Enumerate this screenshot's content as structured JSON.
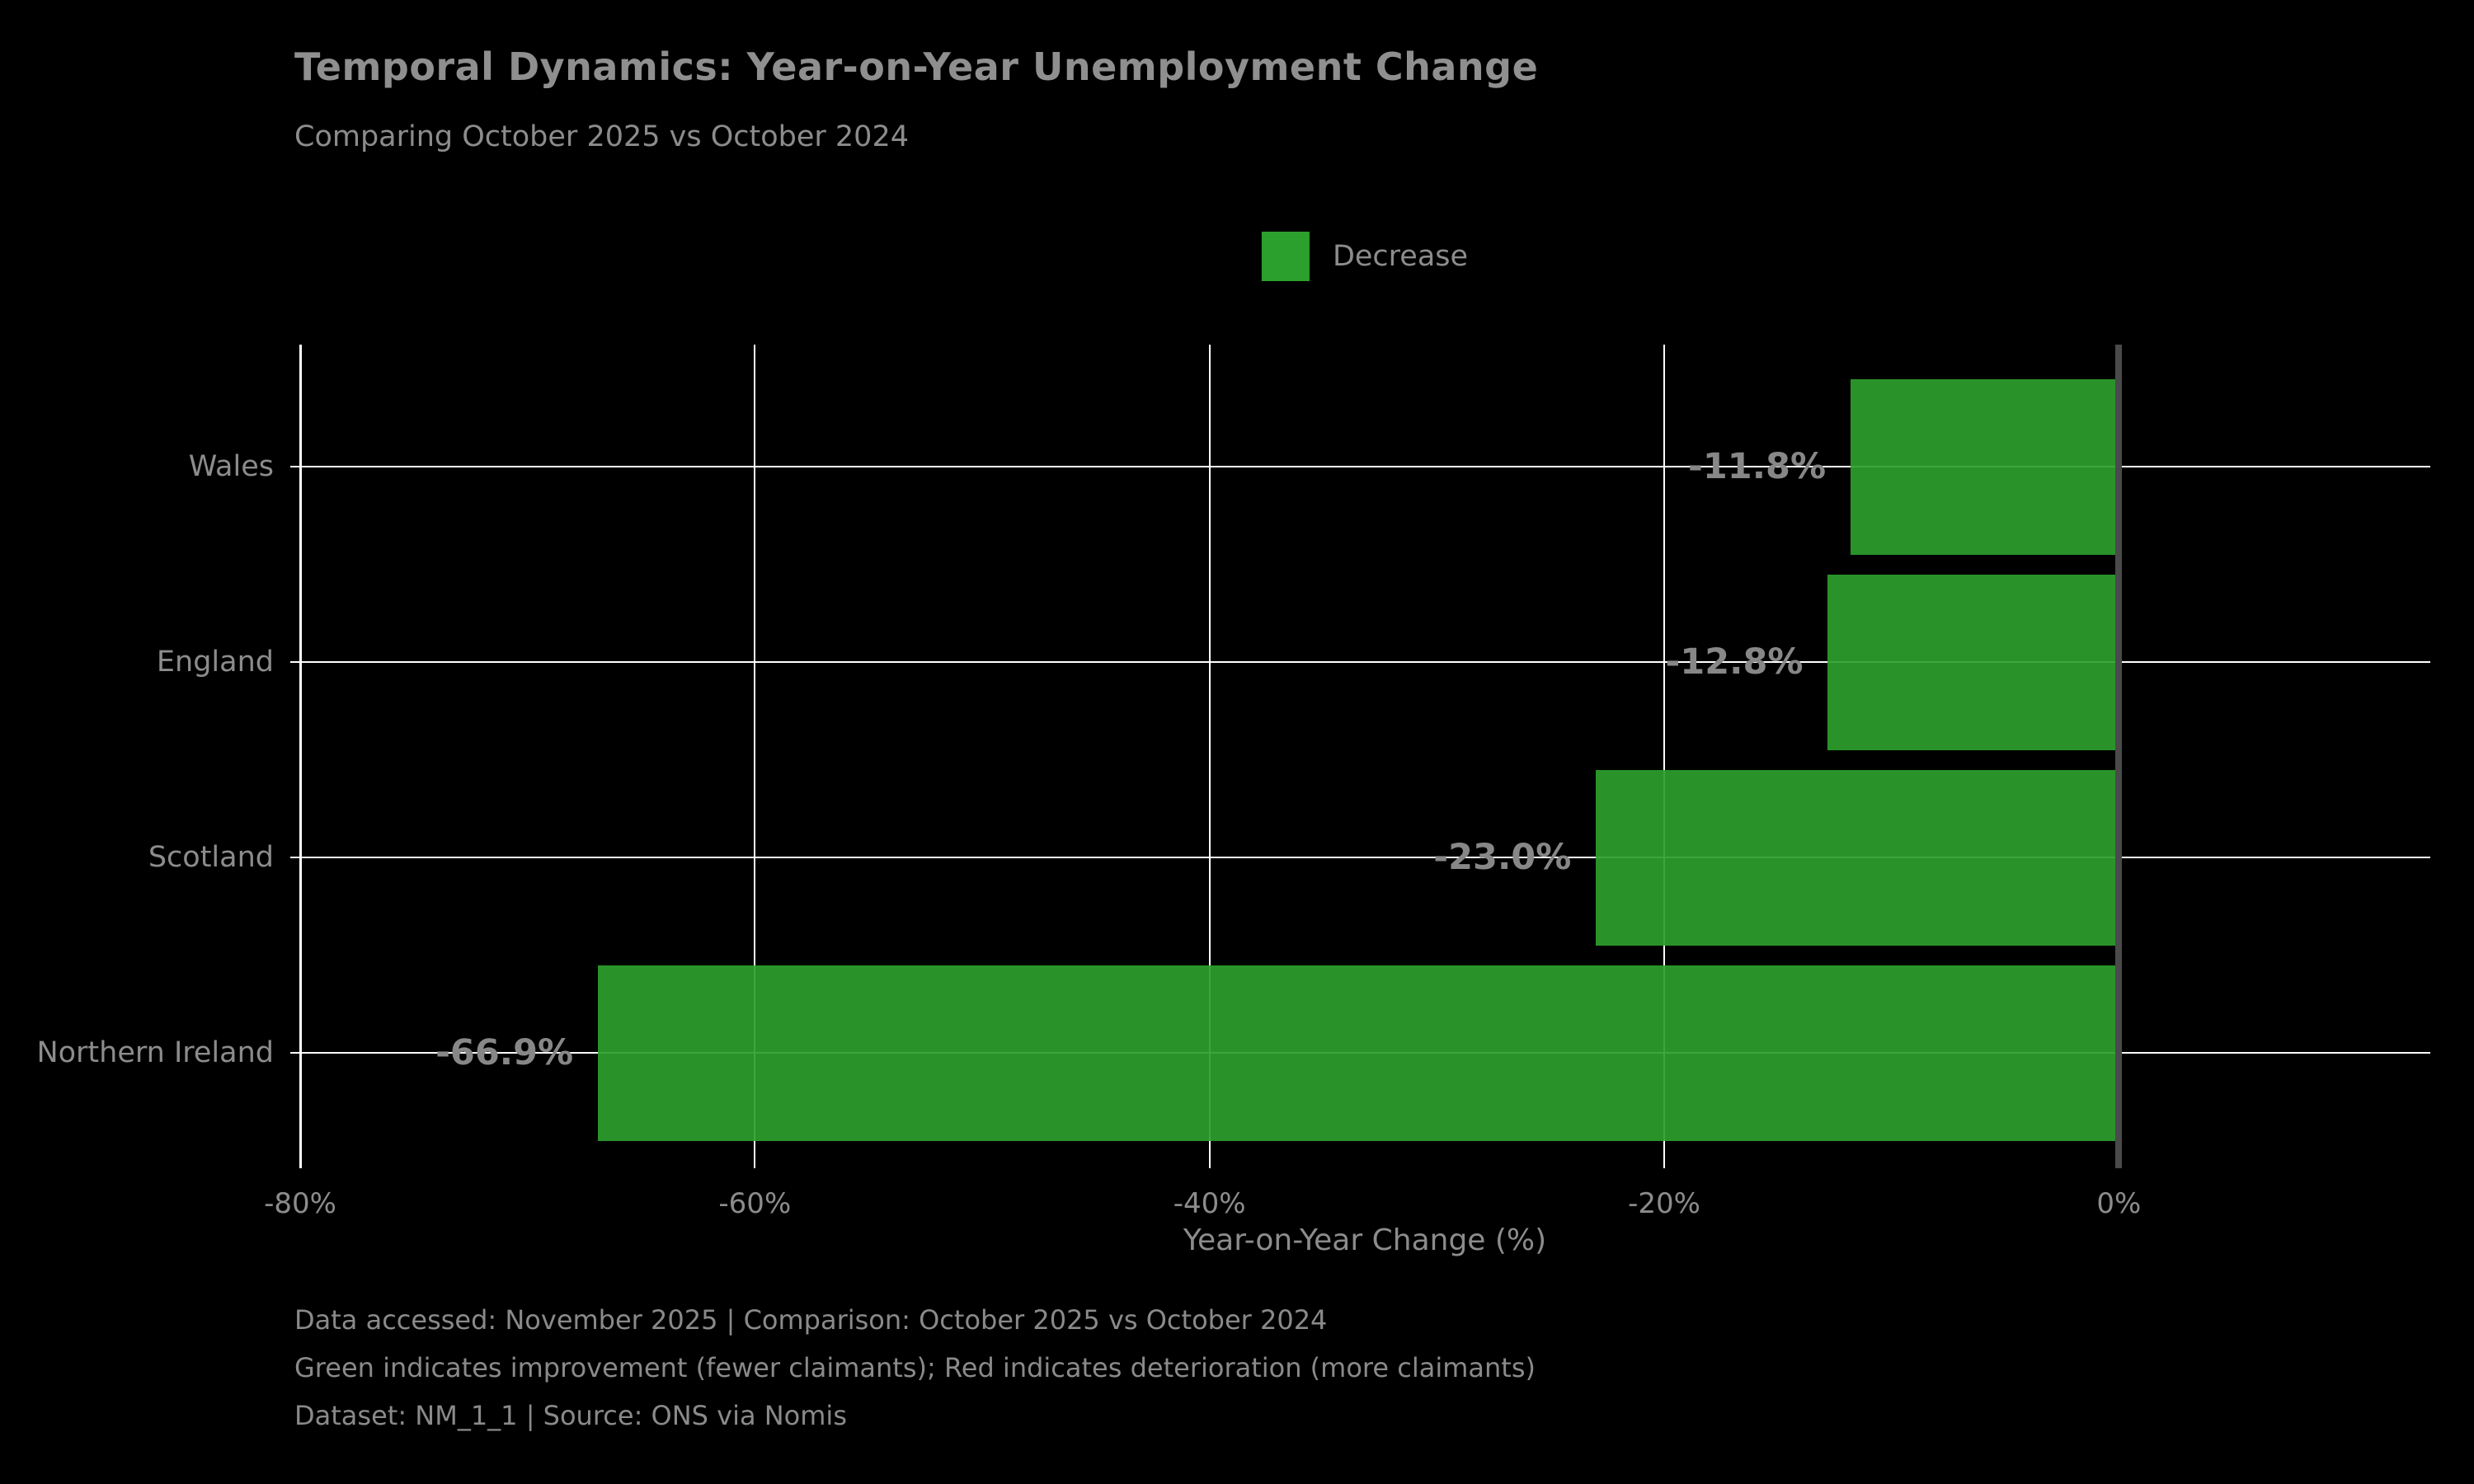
{
  "header": {
    "title": "Temporal Dynamics: Year-on-Year Unemployment Change",
    "subtitle": "Comparing October 2025 vs October 2024"
  },
  "legend": {
    "items": [
      {
        "label": "Decrease",
        "color": "#2ca02c"
      }
    ]
  },
  "chart_data": {
    "type": "bar",
    "orientation": "horizontal",
    "title": "Temporal Dynamics: Year-on-Year Unemployment Change",
    "subtitle": "Comparing October 2025 vs October 2024",
    "categories": [
      "Wales",
      "England",
      "Scotland",
      "Northern Ireland"
    ],
    "values": [
      -11.8,
      -12.8,
      -23.0,
      -66.9
    ],
    "value_labels": [
      "-11.8%",
      "-12.8%",
      "-23.0%",
      "-66.9%"
    ],
    "series_name": "Decrease",
    "bar_color": "#2ca02c",
    "xlabel": "Year-on-Year Change (%)",
    "xlim": [
      -80,
      13.7
    ],
    "xticks": [
      -80,
      -60,
      -40,
      -20,
      0
    ],
    "xtick_labels": [
      "-80%",
      "-60%",
      "-40%",
      "-20%",
      "0%"
    ],
    "grid": true,
    "grid_color": "#ffffff",
    "zero_line_color": "#4a4a4a",
    "background": "#000000",
    "text_color": "#8c8c8c",
    "legend_position": "upper center"
  },
  "footer": {
    "lines": [
      "Data accessed: November 2025 | Comparison: October 2025 vs October 2024",
      "Green indicates improvement (fewer claimants); Red indicates deterioration (more claimants)",
      "Dataset: NM_1_1 | Source: ONS via Nomis"
    ]
  }
}
